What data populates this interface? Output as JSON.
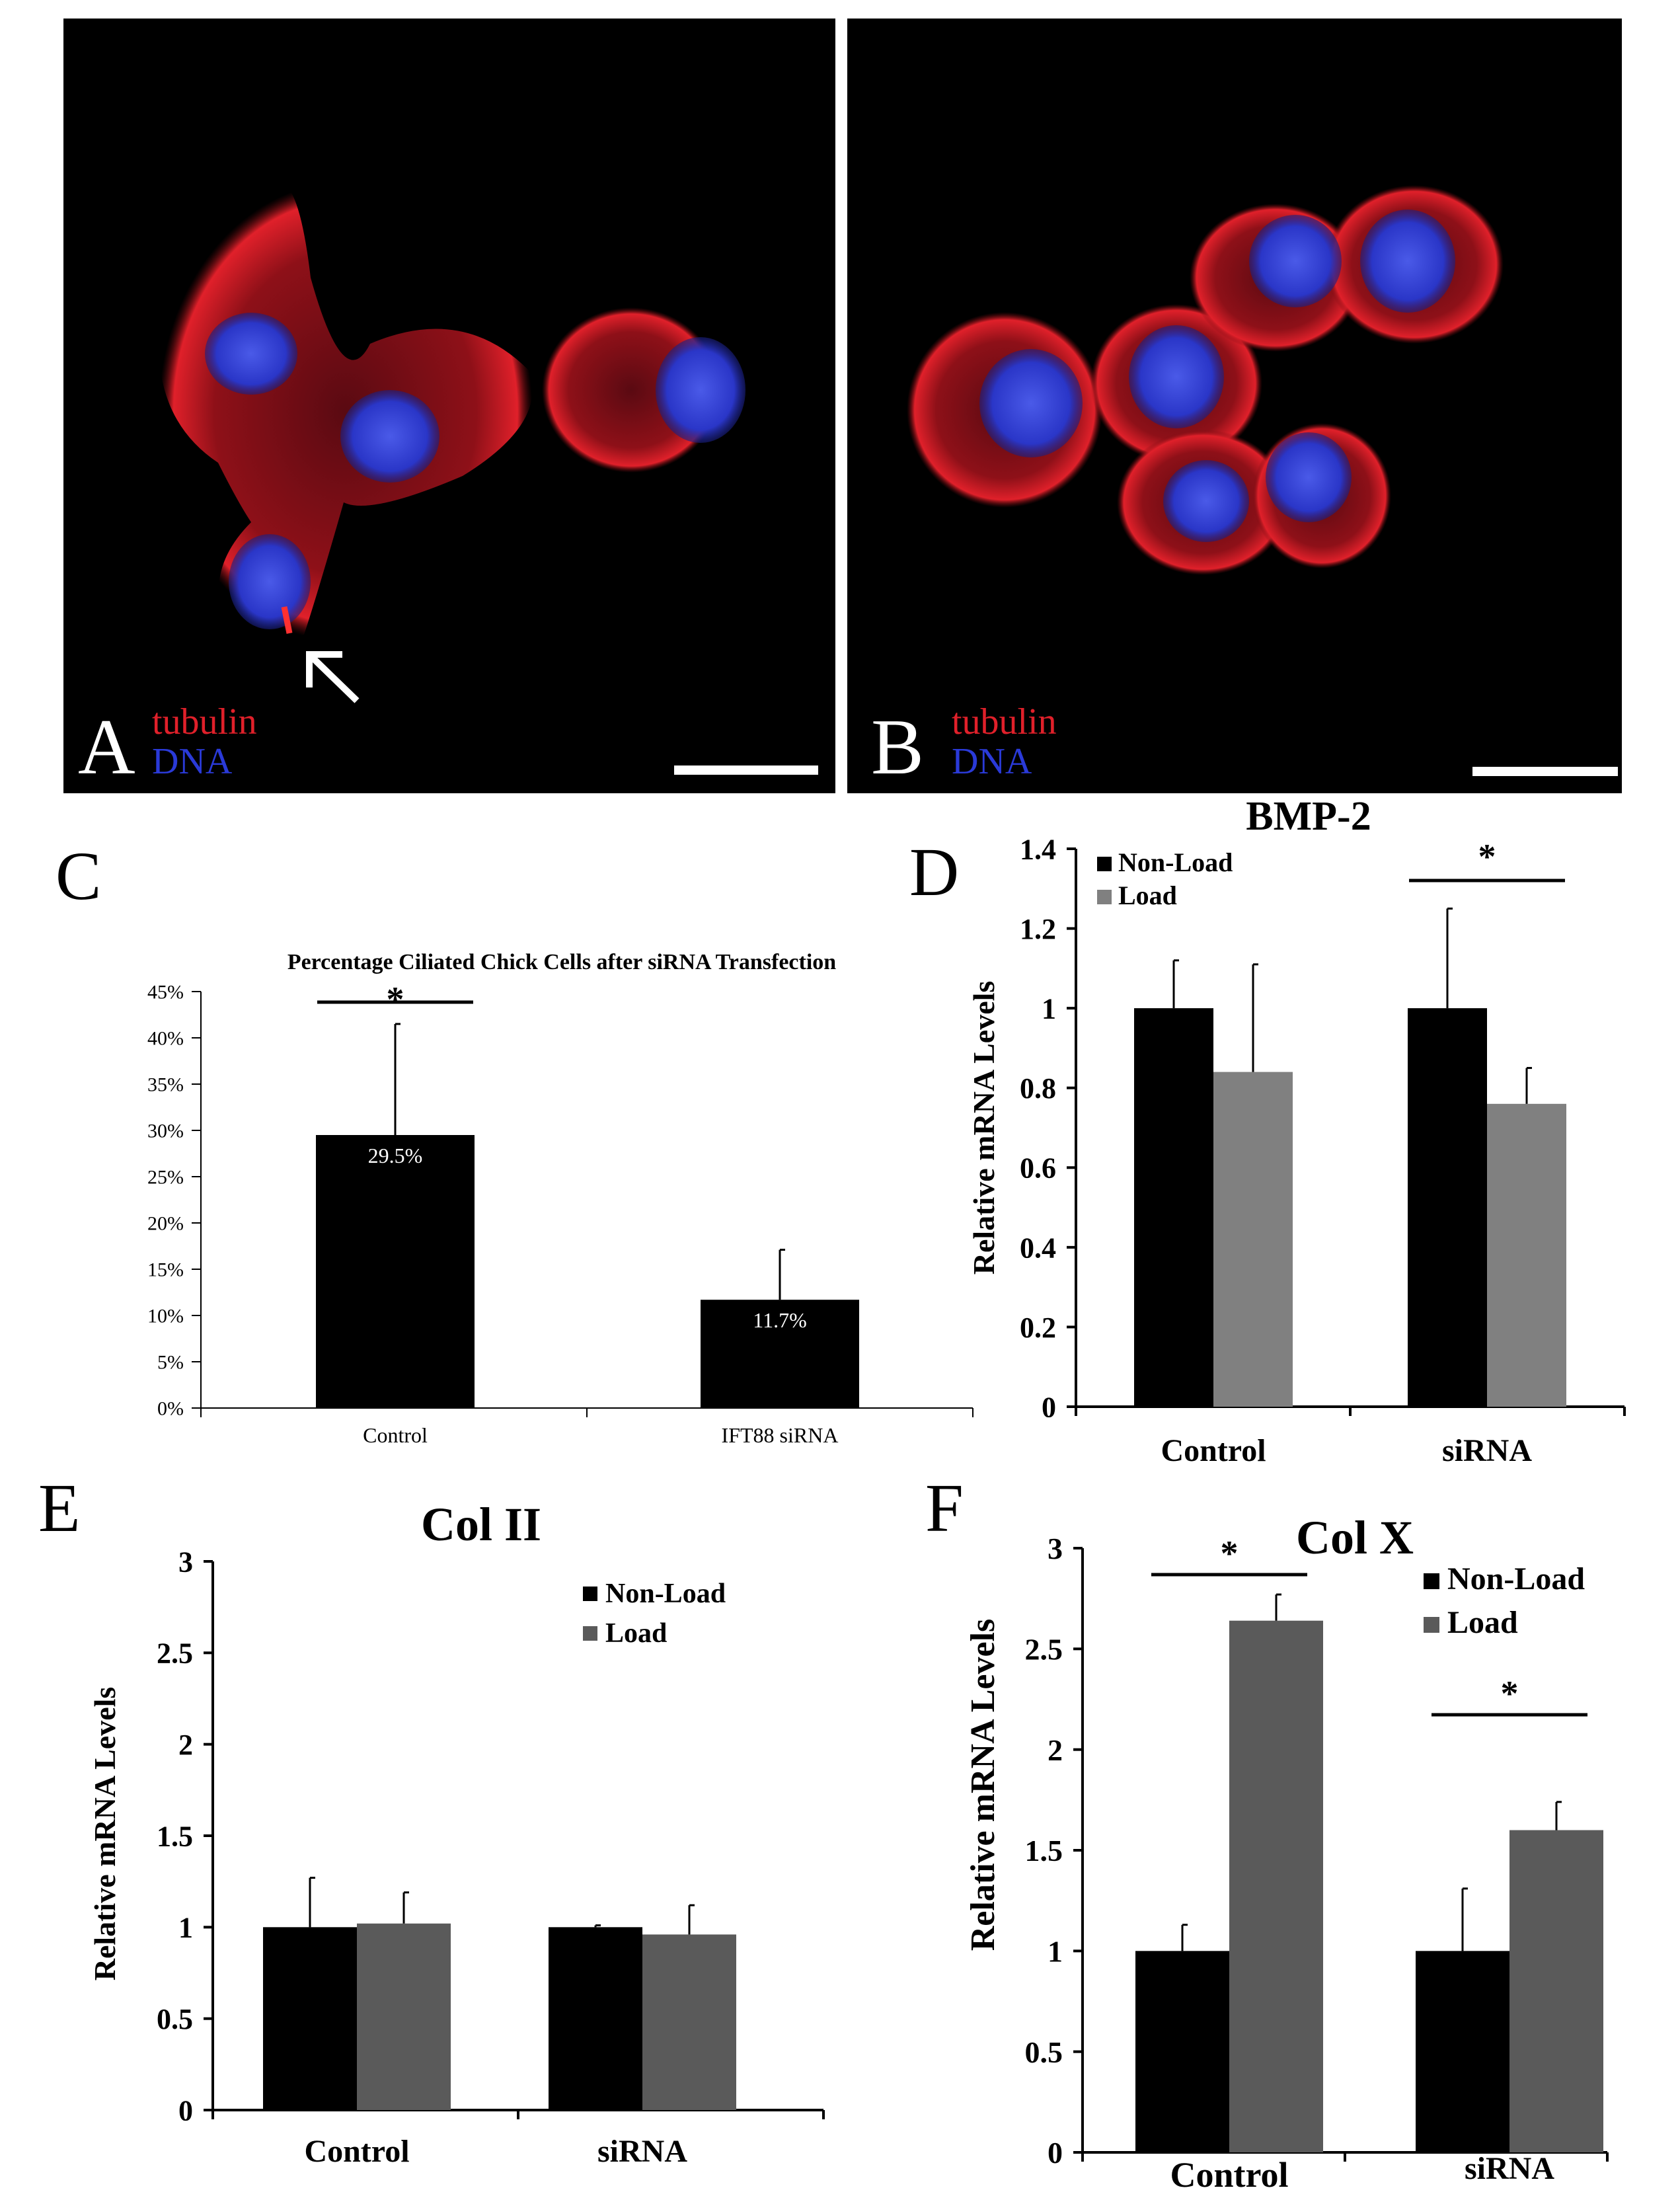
{
  "micrographs": [
    {
      "panel_letter": "A",
      "stain_labels": [
        "tubulin",
        "DNA"
      ],
      "stain_colors": [
        "#e0202a",
        "#2a3ad8"
      ],
      "annotations": [
        "arrow-icon",
        "scale-bar"
      ]
    },
    {
      "panel_letter": "B",
      "stain_labels": [
        "tubulin",
        "DNA"
      ],
      "stain_colors": [
        "#e0202a",
        "#2a3ad8"
      ],
      "annotations": [
        "scale-bar"
      ]
    }
  ],
  "chart_data": [
    {
      "panel_letter": "C",
      "type": "bar",
      "title": "Percentage Ciliated Chick Cells after siRNA Transfection",
      "categories": [
        "Control",
        "IFT88 siRNA"
      ],
      "series": [
        {
          "values": [
            29.5,
            11.7
          ],
          "errors": [
            12.0,
            5.4
          ],
          "color": "#000000"
        }
      ],
      "data_labels": [
        "29.5%",
        "11.7%"
      ],
      "ylim": [
        0,
        45
      ],
      "yticks": [
        "0%",
        "5%",
        "10%",
        "15%",
        "20%",
        "25%",
        "30%",
        "35%",
        "40%",
        "45%"
      ],
      "ytick_values": [
        0,
        5,
        10,
        15,
        20,
        25,
        30,
        35,
        40,
        45
      ],
      "xlabel": "",
      "ylabel": "",
      "significance": [
        {
          "category_index": 0,
          "label": "*"
        }
      ]
    },
    {
      "panel_letter": "D",
      "type": "bar",
      "title": "BMP-2",
      "categories": [
        "Control",
        "siRNA"
      ],
      "series": [
        {
          "name": "Non-Load",
          "values": [
            1.0,
            1.0
          ],
          "errors": [
            0.12,
            0.25
          ],
          "color": "#000000"
        },
        {
          "name": "Load",
          "values": [
            0.84,
            0.76
          ],
          "errors": [
            0.27,
            0.09
          ],
          "color": "#808080"
        }
      ],
      "ylim": [
        0,
        1.4
      ],
      "yticks": [
        "0",
        "0.2",
        "0.4",
        "0.6",
        "0.8",
        "1",
        "1.2",
        "1.4"
      ],
      "ytick_values": [
        0,
        0.2,
        0.4,
        0.6,
        0.8,
        1,
        1.2,
        1.4
      ],
      "ylabel": "Relative mRNA Levels",
      "legend_position": "top-left",
      "significance": [
        {
          "category_index": 1,
          "label": "*"
        }
      ]
    },
    {
      "panel_letter": "E",
      "type": "bar",
      "title": "Col II",
      "categories": [
        "Control",
        "siRNA"
      ],
      "series": [
        {
          "name": "Non-Load",
          "values": [
            1.0,
            1.0
          ],
          "errors": [
            0.27,
            0.01
          ],
          "color": "#000000"
        },
        {
          "name": "Load",
          "values": [
            1.02,
            0.96
          ],
          "errors": [
            0.17,
            0.16
          ],
          "color": "#5a5a5a"
        }
      ],
      "ylim": [
        0,
        3
      ],
      "yticks": [
        "0",
        "0.5",
        "1",
        "1.5",
        "2",
        "2.5",
        "3"
      ],
      "ytick_values": [
        0,
        0.5,
        1,
        1.5,
        2,
        2.5,
        3
      ],
      "ylabel": "Relative mRNA Levels",
      "legend_position": "top-right",
      "significance": []
    },
    {
      "panel_letter": "F",
      "type": "bar",
      "title": "Col X",
      "categories": [
        "Control",
        "siRNA"
      ],
      "series": [
        {
          "name": "Non-Load",
          "values": [
            1.0,
            1.0
          ],
          "errors": [
            0.13,
            0.31
          ],
          "color": "#000000"
        },
        {
          "name": "Load",
          "values": [
            2.64,
            1.6
          ],
          "errors": [
            0.13,
            0.14
          ],
          "color": "#5a5a5a"
        }
      ],
      "ylim": [
        0,
        3
      ],
      "yticks": [
        "0",
        "0.5",
        "1",
        "1.5",
        "2",
        "2.5",
        "3"
      ],
      "ytick_values": [
        0,
        0.5,
        1,
        1.5,
        2,
        2.5,
        3
      ],
      "ylabel": "Relative mRNA Levels",
      "legend_position": "top-right",
      "significance": [
        {
          "category_index": 0,
          "label": "*"
        },
        {
          "category_index": 1,
          "label": "*"
        }
      ]
    }
  ]
}
